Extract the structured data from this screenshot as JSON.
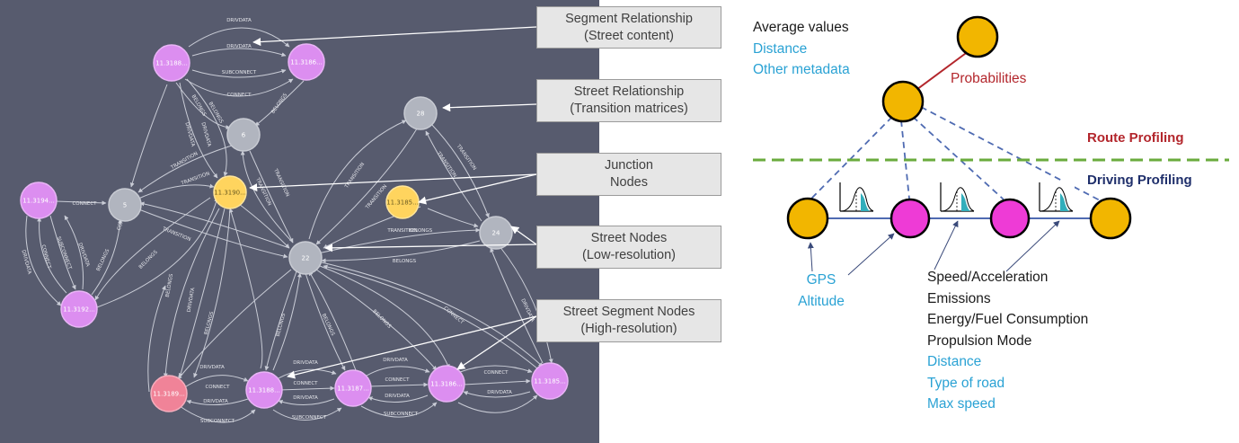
{
  "colors": {
    "panel_bg": "#575b6e",
    "node_purple": "#dc8ef0",
    "node_pink": "#f08398",
    "node_gray": "#b1b5bf",
    "node_yellow": "#ffd45e",
    "junction_gold": "#f2b600",
    "segment_magenta": "#ee3bd6",
    "edge_blue": "#4f6bb2",
    "probability_red": "#b3262c",
    "divider_green": "#6aab3d",
    "teal_fill": "#32aebb"
  },
  "graph": {
    "nodes": {
      "n_top_left": "11.3188...",
      "n_top_right": "11.3186...",
      "n_6": "6",
      "n_28": "28",
      "n_left": "11.3194...",
      "n_5": "5",
      "n_junction_a": "11.3190...",
      "n_junction_b": "11.3185...",
      "n_24": "24",
      "n_22": "22",
      "n_lower_left": "11.3192...",
      "n_bottom_pink": "11.3189...",
      "n_bottom_2": "11.3188...",
      "n_bottom_3": "11.3187...",
      "n_bottom_4": "11.3186...",
      "n_bottom_5": "11.3185..."
    },
    "edge_labels": {
      "e1": "DRIVDATA",
      "e2": "DRIVDATA",
      "e3": "SUBCONNECT",
      "e4": "CONNECT",
      "e5": "BELONGS",
      "e6": "BELONGS",
      "e7": "BELONGS",
      "e8": "DRIVDATA",
      "e9": "DRIVDATA",
      "e10": "TRANSITION",
      "e11": "TRANSITION",
      "e12": "TRANSITION",
      "e13": "TRANSITION",
      "e14": "TRANSITION",
      "e15": "TRANSITION",
      "e16": "TRANSITION",
      "e17": "TRANSITION",
      "e18": "BELONGS",
      "e19": "BELONGS",
      "e20": "CONNECT",
      "e21": "DRIVDATA",
      "e22": "CONNECT",
      "e23": "SUBCONNECT",
      "e24": "DRIVDATA",
      "e25": "BELONGS",
      "e26": "BELONGS",
      "e27": "CONNECT",
      "e28": "BELONGS",
      "e29": "DRIVDATA",
      "e30": "BELONGS",
      "e31": "BELONGS",
      "e32": "BELONGS",
      "e33": "BELONGS",
      "e34": "CONNECT",
      "e35": "DRIVDATA",
      "e36": "DRIVDATA",
      "e37": "CONNECT",
      "e38": "DRIVDATA",
      "e39": "SUBCONNECT",
      "e40": "DRIVDATA",
      "e41": "CONNECT",
      "e42": "DRIVDATA",
      "e43": "SUBCONNECT",
      "e44": "DRIVDATA",
      "e45": "CONNECT",
      "e46": "DRIVDATA",
      "e47": "SUBCONNECT",
      "e48": "CONNECT",
      "e49": "DRIVDATA",
      "e50": "TRANSITION",
      "e51": "TRANSITION"
    }
  },
  "callouts": {
    "segment_relationship": {
      "line1": "Segment Relationship",
      "line2": "(Street content)"
    },
    "street_relationship": {
      "line1": "Street Relationship",
      "line2": "(Transition matrices)"
    },
    "junction_nodes": {
      "line1": "Junction",
      "line2": "Nodes"
    },
    "street_nodes": {
      "line1": "Street Nodes",
      "line2": "(Low-resolution)"
    },
    "street_segment_nodes": {
      "line1": "Street Segment Nodes",
      "line2": "(High-resolution)"
    }
  },
  "profile": {
    "average_values": "Average values",
    "distance": "Distance",
    "other_metadata": "Other metadata",
    "probabilities": "Probabilities",
    "route_profiling": "Route Profiling",
    "driving_profiling": "Driving Profiling",
    "gps": "GPS",
    "altitude": "Altitude",
    "metrics_black": [
      "Speed/Acceleration",
      "Emissions",
      "Energy/Fuel Consumption",
      "Propulsion Mode"
    ],
    "metrics_blue": [
      "Distance",
      "Type of road",
      "Max speed"
    ]
  }
}
